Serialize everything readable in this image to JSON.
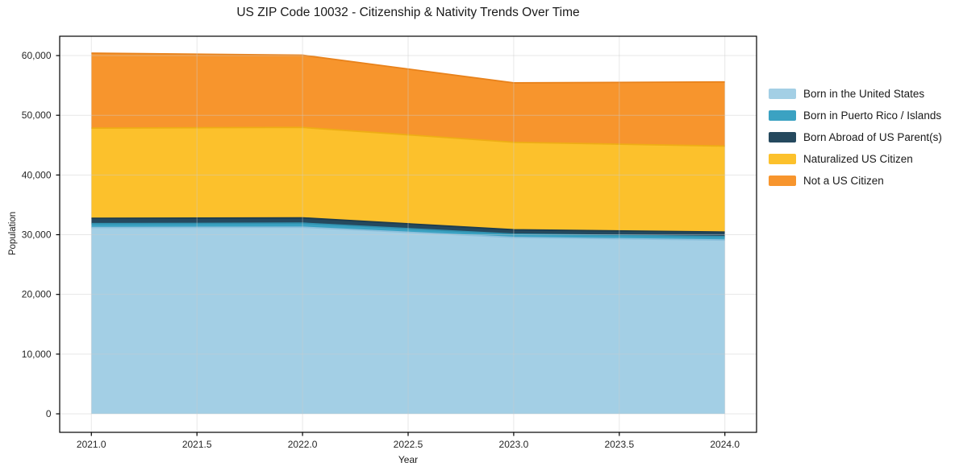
{
  "chart_data": {
    "type": "area",
    "stacked": true,
    "title": "US ZIP Code 10032 - Citizenship & Nativity Trends Over Time",
    "xlabel": "Year",
    "ylabel": "Population",
    "x": [
      2021,
      2022,
      2023,
      2024
    ],
    "series": [
      {
        "name": "Born in the United States",
        "color": "#a3cfe5",
        "edge_color": "#8cc0dc",
        "values": [
          31200,
          31250,
          29550,
          29100
        ]
      },
      {
        "name": "Born in Puerto Rico / Islands",
        "color": "#3ba2c2",
        "edge_color": "#3191af",
        "values": [
          650,
          680,
          550,
          580
        ]
      },
      {
        "name": "Born Abroad of US Parent(s)",
        "color": "#25495e",
        "edge_color": "#1d3c4e",
        "values": [
          900,
          890,
          730,
          760
        ]
      },
      {
        "name": "Naturalized US Citizen",
        "color": "#fcc12c",
        "edge_color": "#eead15",
        "values": [
          15100,
          15150,
          14650,
          14400
        ]
      },
      {
        "name": "Not a US Citizen",
        "color": "#f7952d",
        "edge_color": "#e8821b",
        "values": [
          12550,
          12100,
          9950,
          10750
        ]
      }
    ],
    "totals": [
      60400,
      60070,
      55430,
      55590
    ],
    "xlim": [
      2020.85,
      2024.15
    ],
    "ylim": [
      -3100,
      63240
    ],
    "xticks": [
      2021.0,
      2021.5,
      2022.0,
      2022.5,
      2023.0,
      2023.5,
      2024.0
    ],
    "xtick_labels": [
      "2021.0",
      "2021.5",
      "2022.0",
      "2022.5",
      "2023.0",
      "2023.5",
      "2024.0"
    ],
    "yticks": [
      0,
      10000,
      20000,
      30000,
      40000,
      50000,
      60000
    ],
    "ytick_labels": [
      "0",
      "10,000",
      "20,000",
      "30,000",
      "40,000",
      "50,000",
      "60,000"
    ],
    "grid": true,
    "grid_color": "#cccccc",
    "spine_color": "#000000",
    "legend_position": "right-outside"
  }
}
